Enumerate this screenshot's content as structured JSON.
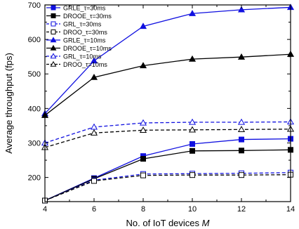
{
  "chart_data": {
    "type": "line",
    "xlabel": "No. of IoT devices ",
    "xlabel_italic": "M",
    "ylabel": "Average throughput (fps)",
    "xlim": [
      4,
      14
    ],
    "ylim": [
      130,
      700
    ],
    "xticks": [
      4,
      6,
      8,
      10,
      12,
      14
    ],
    "yticks": [
      200,
      300,
      400,
      500,
      600,
      700
    ],
    "legend_position": "top-left",
    "grid": false,
    "x": [
      4,
      6,
      8,
      10,
      12,
      14
    ],
    "series": [
      {
        "name": "GRLE_τ=30ms",
        "color": "#1010e0",
        "dash": false,
        "marker": "square",
        "filled": true,
        "values": [
          133,
          198,
          262,
          297,
          310,
          312
        ]
      },
      {
        "name": "DROOE_τ=30ms",
        "color": "#000000",
        "dash": false,
        "marker": "square",
        "filled": true,
        "values": [
          133,
          196,
          254,
          277,
          278,
          280
        ]
      },
      {
        "name": "GRL_τ=30ms",
        "color": "#1010e0",
        "dash": true,
        "marker": "square",
        "filled": false,
        "values": [
          133,
          192,
          210,
          211,
          212,
          214
        ]
      },
      {
        "name": "DROO_τ=30ms",
        "color": "#000000",
        "dash": true,
        "marker": "square",
        "filled": false,
        "values": [
          133,
          190,
          206,
          207,
          207,
          208
        ]
      },
      {
        "name": "GRLE_τ=10ms",
        "color": "#1010e0",
        "dash": false,
        "marker": "triangle",
        "filled": true,
        "values": [
          385,
          538,
          638,
          675,
          686,
          693
        ]
      },
      {
        "name": "DROOE_τ=10ms",
        "color": "#000000",
        "dash": false,
        "marker": "triangle",
        "filled": true,
        "values": [
          380,
          490,
          524,
          543,
          549,
          557
        ]
      },
      {
        "name": "GRL_τ=10ms",
        "color": "#1010e0",
        "dash": true,
        "marker": "triangle",
        "filled": false,
        "values": [
          300,
          346,
          358,
          360,
          360,
          361
        ]
      },
      {
        "name": "DROO_τ=10ms",
        "color": "#000000",
        "dash": true,
        "marker": "triangle",
        "filled": false,
        "values": [
          287,
          329,
          337,
          338,
          339,
          340
        ]
      }
    ]
  }
}
